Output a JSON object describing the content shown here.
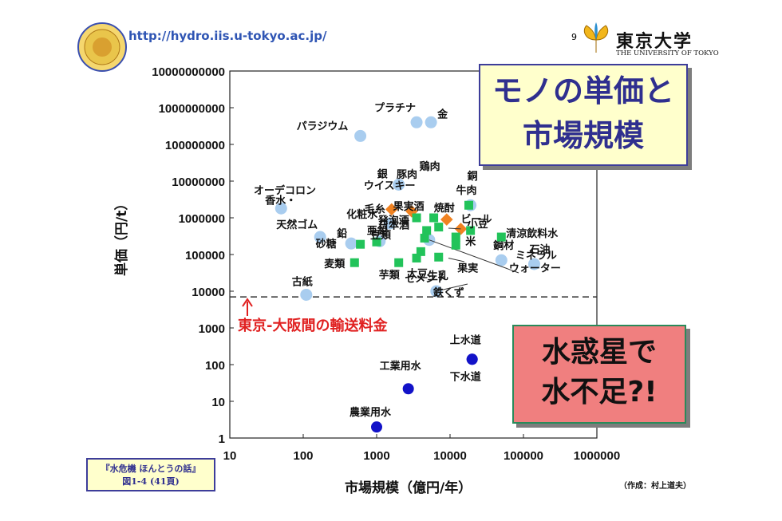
{
  "header": {
    "url": "http://hydro.iis.u-tokyo.ac.jp/",
    "page_number": "9",
    "university_jp": "東京大学",
    "university_en": "THE UNIVERSITY OF TOKYO"
  },
  "title_box": {
    "lines": [
      "モノの単価と",
      "市場規模"
    ]
  },
  "water_box": {
    "lines": [
      "水惑星で",
      "水不足?!"
    ]
  },
  "book_box": {
    "lines": [
      "『水危機 ほんとうの話』",
      "図1-4 (41頁)"
    ]
  },
  "credit": "（作成：村上道夫）",
  "colors": {
    "light_blue": "#a9cdef",
    "green": "#22c35a",
    "orange": "#f08221",
    "dark_blue": "#1212c8",
    "red": "#e02020",
    "title_blue": "#2f2f8f"
  },
  "chart_data": {
    "type": "scatter",
    "xlabel": "市場規模（億円/年）",
    "ylabel": "単価（円/t）",
    "xscale": "log",
    "yscale": "log",
    "xlim": [
      10,
      1000000
    ],
    "ylim": [
      1,
      10000000000
    ],
    "x_ticks": [
      "10",
      "100",
      "1000",
      "10000",
      "100000",
      "1000000"
    ],
    "y_ticks": [
      "1",
      "10",
      "100",
      "1000",
      "10000",
      "100000",
      "1000000",
      "10000000",
      "100000000",
      "1000000000",
      "10000000000"
    ],
    "transport_line": {
      "y": 7000,
      "label": "東京-大阪間の輸送料金"
    },
    "points": [
      {
        "label": "プラチナ",
        "x": 3500,
        "y": 400000000,
        "color": "light_blue"
      },
      {
        "label": "金",
        "x": 5500,
        "y": 400000000,
        "color": "light_blue"
      },
      {
        "label": "パラジウム",
        "x": 600,
        "y": 170000000,
        "color": "light_blue"
      },
      {
        "label": "銀",
        "x": 2000,
        "y": 8000000,
        "color": "light_blue"
      },
      {
        "label": "香水・",
        "x": 50,
        "y": 1800000,
        "color": "light_blue"
      },
      {
        "label": "オーデコロン",
        "x": 0,
        "y": 0,
        "color": "none"
      },
      {
        "label": "化粧水",
        "x": 1500,
        "y": 700000,
        "color": "light_blue"
      },
      {
        "label": "天然ゴム",
        "x": 170,
        "y": 300000,
        "color": "light_blue"
      },
      {
        "label": "鉛",
        "x": 450,
        "y": 200000,
        "color": "light_blue"
      },
      {
        "label": "亜鉛",
        "x": 1100,
        "y": 230000,
        "color": "light_blue"
      },
      {
        "label": "銅",
        "x": 19000,
        "y": 2200000,
        "color": "light_blue"
      },
      {
        "label": "鋼材",
        "x": 50000,
        "y": 70000,
        "color": "light_blue"
      },
      {
        "label": "石油",
        "x": 140000,
        "y": 55000,
        "color": "light_blue"
      },
      {
        "label": "古紙",
        "x": 110,
        "y": 8000,
        "color": "light_blue"
      },
      {
        "label": "鉄くず",
        "x": 6500,
        "y": 10000,
        "color": "light_blue"
      },
      {
        "label": "ミネラルウォーター",
        "x": 5200,
        "y": 250000,
        "color": "light_blue"
      },
      {
        "label": "毛糸",
        "x": 1600,
        "y": 1700000,
        "color": "orange"
      },
      {
        "label": "ウイスキー",
        "x": 3000,
        "y": 1500000,
        "color": "orange"
      },
      {
        "label": "焼酎",
        "x": 9000,
        "y": 900000,
        "color": "orange"
      },
      {
        "label": "ビール",
        "x": 14000,
        "y": 500000,
        "color": "orange"
      },
      {
        "label": "豚肉",
        "x": 3500,
        "y": 1000000,
        "color": "green"
      },
      {
        "label": "鶏肉",
        "x": 6000,
        "y": 1000000,
        "color": "green"
      },
      {
        "label": "牛肉",
        "x": 18000,
        "y": 2200000,
        "color": "green"
      },
      {
        "label": "果実酒",
        "x": 4800,
        "y": 450000,
        "color": "green"
      },
      {
        "label": "日本酒",
        "x": 4500,
        "y": 280000,
        "color": "green"
      },
      {
        "label": "発泡酒",
        "x": 7000,
        "y": 560000,
        "color": "green"
      },
      {
        "label": "砂糖",
        "x": 600,
        "y": 190000,
        "color": "green"
      },
      {
        "label": "豆類",
        "x": 1000,
        "y": 220000,
        "color": "green"
      },
      {
        "label": "麦類",
        "x": 500,
        "y": 60000,
        "color": "green"
      },
      {
        "label": "芋類",
        "x": 2000,
        "y": 60000,
        "color": "green"
      },
      {
        "label": "大豆",
        "x": 3500,
        "y": 80000,
        "color": "green"
      },
      {
        "label": "生乳",
        "x": 7000,
        "y": 85000,
        "color": "green"
      },
      {
        "label": "セメント",
        "x": 4000,
        "y": 120000,
        "color": "green"
      },
      {
        "label": "小豆",
        "x": 19000,
        "y": 450000,
        "color": "green"
      },
      {
        "label": "米",
        "x": 12000,
        "y": 300000,
        "color": "green"
      },
      {
        "label": "果実",
        "x": 12000,
        "y": 180000,
        "color": "green"
      },
      {
        "label": "清涼飲料水",
        "x": 50000,
        "y": 300000,
        "color": "green"
      },
      {
        "label": "上水道",
        "x": 20000,
        "y": 140,
        "color": "dark_blue"
      },
      {
        "label": "下水道",
        "x": 20000,
        "y": 140,
        "color": "dark_blue"
      },
      {
        "label": "工業用水",
        "x": 2700,
        "y": 22,
        "color": "dark_blue"
      },
      {
        "label": "農業用水",
        "x": 1000,
        "y": 2,
        "color": "dark_blue"
      }
    ]
  }
}
